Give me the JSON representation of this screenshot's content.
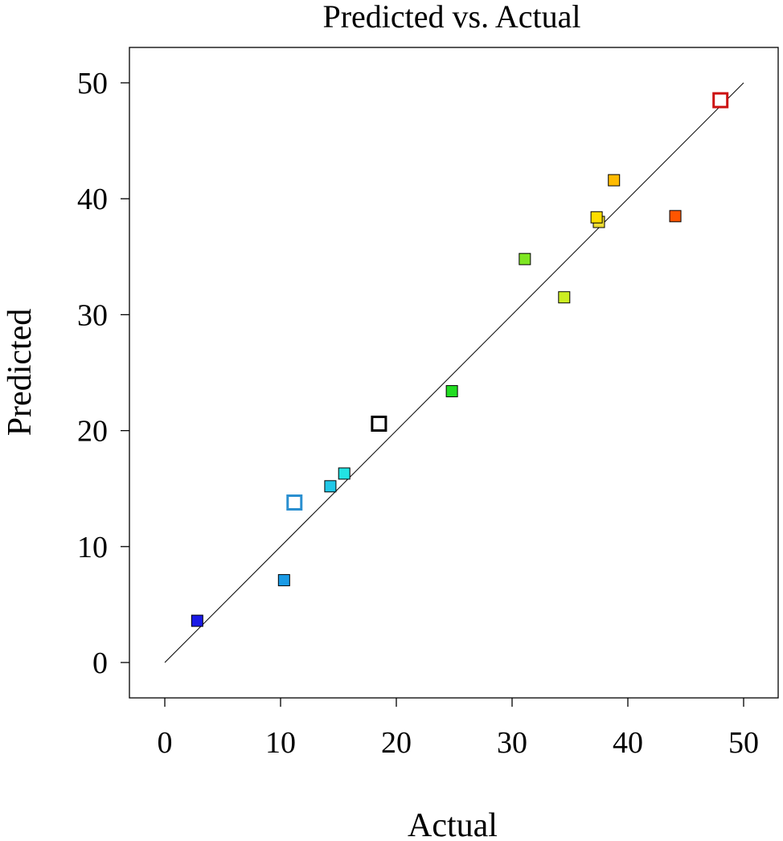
{
  "chart_data": {
    "type": "scatter",
    "title": "Predicted vs. Actual",
    "xlabel": "Actual",
    "ylabel": "Predicted",
    "xlim": [
      -3,
      53
    ],
    "ylim": [
      -3,
      53
    ],
    "xticks": [
      0,
      10,
      20,
      30,
      40,
      50
    ],
    "yticks": [
      0,
      10,
      20,
      30,
      40,
      50
    ],
    "grid": false,
    "reference_line": {
      "from": [
        0,
        0
      ],
      "to": [
        50,
        50
      ],
      "color": "#000000"
    },
    "points": [
      {
        "x": 2.8,
        "y": 3.6,
        "fill": "#1a1ae6",
        "stroke": "#000000",
        "hollow": false
      },
      {
        "x": 10.3,
        "y": 7.1,
        "fill": "#1a9be6",
        "stroke": "#000000",
        "hollow": false
      },
      {
        "x": 11.2,
        "y": 13.8,
        "fill": "#ffffff",
        "stroke": "#2a8fd0",
        "hollow": true
      },
      {
        "x": 14.3,
        "y": 15.2,
        "fill": "#22c8e8",
        "stroke": "#000000",
        "hollow": false
      },
      {
        "x": 15.5,
        "y": 16.3,
        "fill": "#22e3e3",
        "stroke": "#000000",
        "hollow": false
      },
      {
        "x": 18.5,
        "y": 20.6,
        "fill": "#ffffff",
        "stroke": "#000000",
        "hollow": true
      },
      {
        "x": 24.8,
        "y": 23.4,
        "fill": "#22dd22",
        "stroke": "#000000",
        "hollow": false
      },
      {
        "x": 31.1,
        "y": 34.8,
        "fill": "#7ee622",
        "stroke": "#000000",
        "hollow": false
      },
      {
        "x": 34.5,
        "y": 31.5,
        "fill": "#ccee22",
        "stroke": "#000000",
        "hollow": false
      },
      {
        "x": 37.5,
        "y": 38.0,
        "fill": "#eedd33",
        "stroke": "#000000",
        "hollow": false
      },
      {
        "x": 37.3,
        "y": 38.4,
        "fill": "#ffdd00",
        "stroke": "#000000",
        "hollow": false
      },
      {
        "x": 38.8,
        "y": 41.6,
        "fill": "#ffbb00",
        "stroke": "#000000",
        "hollow": false
      },
      {
        "x": 44.1,
        "y": 38.5,
        "fill": "#ff5500",
        "stroke": "#000000",
        "hollow": false
      },
      {
        "x": 48.0,
        "y": 48.5,
        "fill": "#ffffff",
        "stroke": "#cc1111",
        "hollow": true
      }
    ]
  }
}
